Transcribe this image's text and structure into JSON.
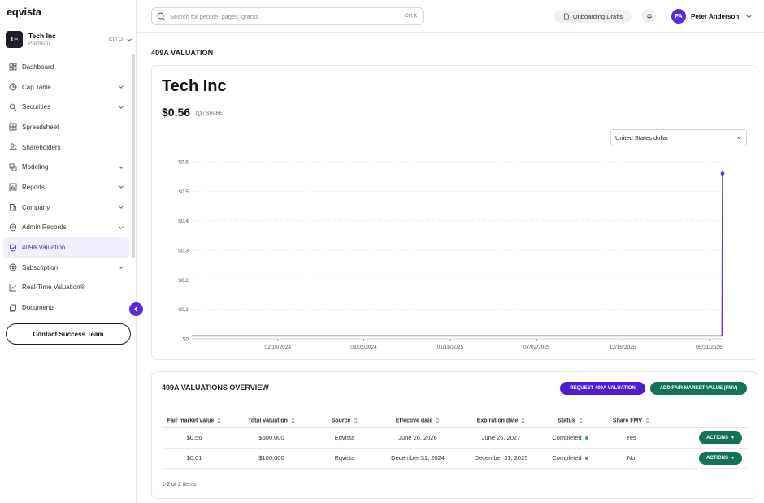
{
  "app": {
    "logo": "eqvista"
  },
  "company": {
    "initials": "TE",
    "name": "Tech Inc",
    "plan": "Premium",
    "shortcut": "Ctrl O"
  },
  "sidebar": {
    "items": [
      {
        "label": "Dashboard",
        "icon": "dashboard-icon",
        "expandable": false,
        "active": false
      },
      {
        "label": "Cap Table",
        "icon": "pie-chart-icon",
        "expandable": true,
        "active": false
      },
      {
        "label": "Securities",
        "icon": "securities-icon",
        "expandable": true,
        "active": false
      },
      {
        "label": "Spreadsheet",
        "icon": "grid-icon",
        "expandable": false,
        "active": false
      },
      {
        "label": "Shareholders",
        "icon": "users-icon",
        "expandable": false,
        "active": false
      },
      {
        "label": "Modeling",
        "icon": "modeling-icon",
        "expandable": true,
        "active": false
      },
      {
        "label": "Reports",
        "icon": "reports-icon",
        "expandable": true,
        "active": false
      },
      {
        "label": "Company",
        "icon": "company-icon",
        "expandable": true,
        "active": false
      },
      {
        "label": "Admin Records",
        "icon": "records-icon",
        "expandable": true,
        "active": false
      },
      {
        "label": "409A Valuation",
        "icon": "shield-check-icon",
        "expandable": false,
        "active": true
      },
      {
        "label": "Subscription",
        "icon": "subscription-icon",
        "expandable": true,
        "active": false
      },
      {
        "label": "Real-Time Valuation®",
        "icon": "trend-icon",
        "expandable": false,
        "active": false
      },
      {
        "label": "Documents",
        "icon": "documents-icon",
        "expandable": false,
        "active": false
      }
    ],
    "contact_label": "Contact Success Team"
  },
  "header": {
    "search_placeholder": "Search for people, pages, grants",
    "search_shortcut": "Ctrl K",
    "drafts_label": "Onboarding Drafts",
    "user_initials": "PA",
    "user_name": "Peter Anderson"
  },
  "page": {
    "title": "409A VALUATION",
    "company_name": "Tech Inc",
    "share_price": "$0.56",
    "per_share": "/ SHARE",
    "currency": "United States dollar"
  },
  "chart_data": {
    "type": "line",
    "x_ticks": [
      "02/18/2024",
      "08/02/2024",
      "01/16/2025",
      "07/02/2025",
      "12/15/2025",
      "05/31/2026"
    ],
    "y_ticks": [
      "$0",
      "$0.1",
      "$0.2",
      "$0.3",
      "$0.4",
      "$0.5",
      "$0.6"
    ],
    "ylim": [
      0,
      0.6
    ],
    "series": [
      {
        "x": [
          "2023-09-05",
          "2026-06-25",
          "2026-06-26"
        ],
        "values": [
          0.01,
          0.01,
          0.56
        ]
      }
    ],
    "grid": true,
    "color": "#6b34e0"
  },
  "overview": {
    "title": "409A VALUATIONS OVERVIEW",
    "request_button": "REQUEST 409A VALUATION",
    "add_fmv_button": "ADD FAIR MARKET VALUE (FMV)",
    "columns": [
      "Fair market value",
      "Total valuation",
      "Source",
      "Effective date",
      "Expiration date",
      "Status",
      "Share FMV",
      ""
    ],
    "rows": [
      {
        "fmv": "$0.56",
        "total": "$500,000",
        "source": "Eqvista",
        "effective": "June 26, 2026",
        "expiration": "June 26, 2027",
        "status": "Completed",
        "share_fmv": "Yes",
        "action": "ACTIONS"
      },
      {
        "fmv": "$0.01",
        "total": "$100,000",
        "source": "Eqvista",
        "effective": "December 31, 2024",
        "expiration": "December 31, 2025",
        "status": "Completed",
        "share_fmv": "No",
        "action": "ACTIONS"
      }
    ],
    "items_count": "1-2 of 2 items"
  }
}
